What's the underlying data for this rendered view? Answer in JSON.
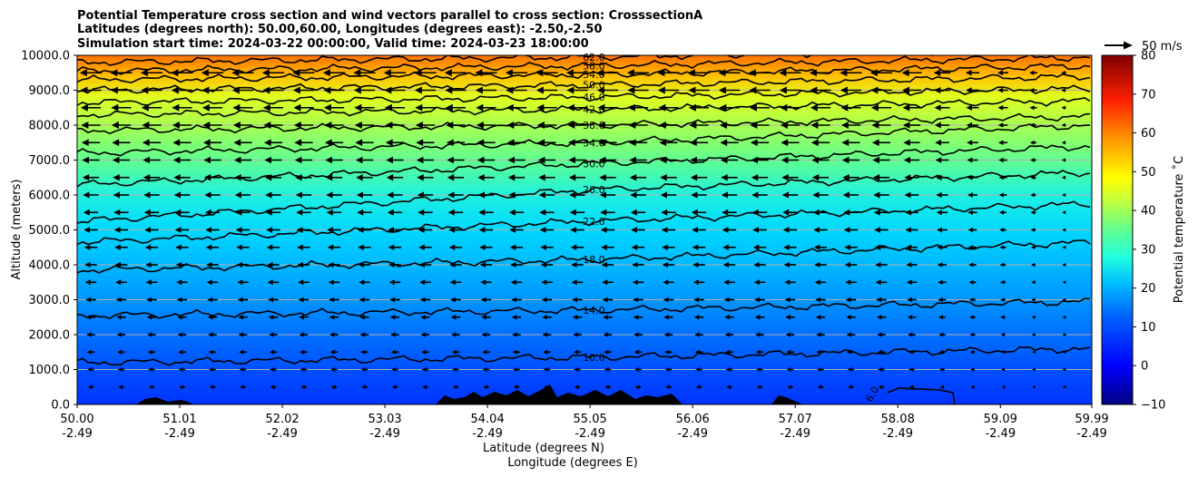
{
  "chart_data": {
    "type": "heatmap",
    "title_lines": [
      "Potential Temperature cross section and wind vectors parallel to cross section: CrosssectionA",
      "Latitudes (degrees north): 50.00,60.00, Longitudes (degrees east): -2.50,-2.50",
      "Simulation start time: 2024-03-22 00:00:00, Valid time: 2024-03-23 18:00:00"
    ],
    "xlabel_lines": [
      "Latitude (degrees N)",
      "Longitude (degrees E)"
    ],
    "ylabel": "Altitude (meters)",
    "xlim": [
      50.0,
      59.99
    ],
    "ylim": [
      0,
      10000
    ],
    "x_ticks": [
      {
        "lat": "50.00",
        "lon": "-2.49",
        "value": 50.0
      },
      {
        "lat": "51.01",
        "lon": "-2.49",
        "value": 51.01
      },
      {
        "lat": "52.02",
        "lon": "-2.49",
        "value": 52.02
      },
      {
        "lat": "53.03",
        "lon": "-2.49",
        "value": 53.03
      },
      {
        "lat": "54.04",
        "lon": "-2.49",
        "value": 54.04
      },
      {
        "lat": "55.05",
        "lon": "-2.49",
        "value": 55.05
      },
      {
        "lat": "56.06",
        "lon": "-2.49",
        "value": 56.06
      },
      {
        "lat": "57.07",
        "lon": "-2.49",
        "value": 57.07
      },
      {
        "lat": "58.08",
        "lon": "-2.49",
        "value": 58.08
      },
      {
        "lat": "59.09",
        "lon": "-2.49",
        "value": 59.09
      },
      {
        "lat": "59.99",
        "lon": "-2.49",
        "value": 59.99
      }
    ],
    "y_ticks": [
      {
        "label": "0.0",
        "value": 0
      },
      {
        "label": "1000.0",
        "value": 1000
      },
      {
        "label": "2000.0",
        "value": 2000
      },
      {
        "label": "3000.0",
        "value": 3000
      },
      {
        "label": "4000.0",
        "value": 4000
      },
      {
        "label": "5000.0",
        "value": 5000
      },
      {
        "label": "6000.0",
        "value": 6000
      },
      {
        "label": "7000.0",
        "value": 7000
      },
      {
        "label": "8000.0",
        "value": 8000
      },
      {
        "label": "9000.0",
        "value": 9000
      },
      {
        "label": "10000.0",
        "value": 10000
      }
    ],
    "grid": "horizontal",
    "colorbar": {
      "label": "Potential temperature $^\\circ$C",
      "label_display": "Potential temperature ˚C",
      "range": [
        -10,
        80
      ],
      "colormap": "jet",
      "ticks": [
        "−10",
        "0",
        "10",
        "20",
        "30",
        "40",
        "50",
        "60",
        "70",
        "80"
      ],
      "tick_values": [
        -10,
        0,
        10,
        20,
        30,
        40,
        50,
        60,
        70,
        80
      ]
    },
    "quiver_key": {
      "label": "50 m/s",
      "value": 50
    },
    "contours": [
      {
        "label": "6.0",
        "value": 6
      },
      {
        "label": "10.0",
        "value": 10
      },
      {
        "label": "14.0",
        "value": 14
      },
      {
        "label": "18.0",
        "value": 18
      },
      {
        "label": "22.0",
        "value": 22
      },
      {
        "label": "26.0",
        "value": 26
      },
      {
        "label": "30.0",
        "value": 30
      },
      {
        "label": "34.0",
        "value": 34
      },
      {
        "label": "38.0",
        "value": 38
      },
      {
        "label": "42.0",
        "value": 42
      },
      {
        "label": "46.0",
        "value": 46
      },
      {
        "label": "50.0",
        "value": 50
      },
      {
        "label": "54.0",
        "value": 54
      },
      {
        "label": "58.0",
        "value": 58
      },
      {
        "label": "62.0",
        "value": 62
      }
    ],
    "contour_heights_at_55N": [
      {
        "value": 10,
        "altitude": 1350
      },
      {
        "value": 14,
        "altitude": 2700
      },
      {
        "value": 18,
        "altitude": 4150
      },
      {
        "value": 22,
        "altitude": 5250
      },
      {
        "value": 26,
        "altitude": 6150
      },
      {
        "value": 30,
        "altitude": 6900
      },
      {
        "value": 34,
        "altitude": 7500
      },
      {
        "value": 38,
        "altitude": 8000
      },
      {
        "value": 42,
        "altitude": 8450
      },
      {
        "value": 46,
        "altitude": 8800
      },
      {
        "value": 50,
        "altitude": 9150
      },
      {
        "value": 54,
        "altitude": 9450
      },
      {
        "value": 58,
        "altitude": 9700
      },
      {
        "value": 62,
        "altitude": 9950
      }
    ],
    "terrain": "orography peaks up to ~600 m near 54–56 N, shown in black at the surface",
    "wind": "vectors pointing northward-to-southward (leftward), strongest aloft (~15–20 m/s), weak near the surface and in the north"
  }
}
